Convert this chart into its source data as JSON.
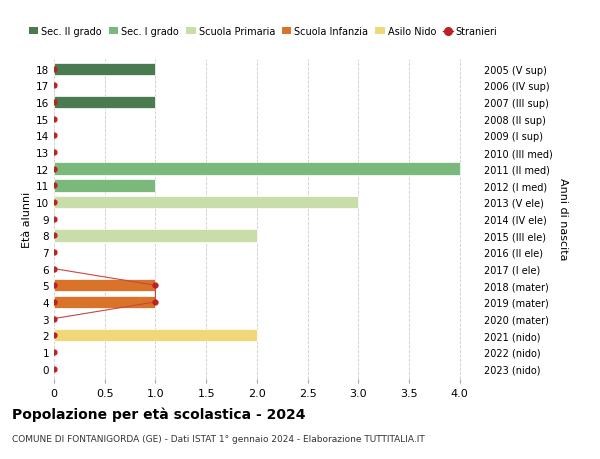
{
  "title": "Popolazione per età scolastica - 2024",
  "subtitle": "COMUNE DI FONTANIGORDA (GE) - Dati ISTAT 1° gennaio 2024 - Elaborazione TUTTITALIA.IT",
  "xlabel_left": "Età alunni",
  "xlabel_right": "Anni di nascita",
  "y_ages": [
    18,
    17,
    16,
    15,
    14,
    13,
    12,
    11,
    10,
    9,
    8,
    7,
    6,
    5,
    4,
    3,
    2,
    1,
    0
  ],
  "right_labels": [
    "2005 (V sup)",
    "2006 (IV sup)",
    "2007 (III sup)",
    "2008 (II sup)",
    "2009 (I sup)",
    "2010 (III med)",
    "2011 (II med)",
    "2012 (I med)",
    "2013 (V ele)",
    "2014 (IV ele)",
    "2015 (III ele)",
    "2016 (II ele)",
    "2017 (I ele)",
    "2018 (mater)",
    "2019 (mater)",
    "2020 (mater)",
    "2021 (nido)",
    "2022 (nido)",
    "2023 (nido)"
  ],
  "bars": [
    {
      "age": 18,
      "value": 1,
      "color": "#4a7a50"
    },
    {
      "age": 17,
      "value": 0,
      "color": "#4a7a50"
    },
    {
      "age": 16,
      "value": 1,
      "color": "#4a7a50"
    },
    {
      "age": 15,
      "value": 0,
      "color": "#4a7a50"
    },
    {
      "age": 14,
      "value": 0,
      "color": "#4a7a50"
    },
    {
      "age": 13,
      "value": 0,
      "color": "#7bb87b"
    },
    {
      "age": 12,
      "value": 4,
      "color": "#7bb87b"
    },
    {
      "age": 11,
      "value": 1,
      "color": "#7bb87b"
    },
    {
      "age": 10,
      "value": 3,
      "color": "#c8dda8"
    },
    {
      "age": 9,
      "value": 0,
      "color": "#c8dda8"
    },
    {
      "age": 8,
      "value": 2,
      "color": "#c8dda8"
    },
    {
      "age": 7,
      "value": 0,
      "color": "#c8dda8"
    },
    {
      "age": 6,
      "value": 0,
      "color": "#c8dda8"
    },
    {
      "age": 5,
      "value": 1,
      "color": "#d9732a"
    },
    {
      "age": 4,
      "value": 1,
      "color": "#d9732a"
    },
    {
      "age": 3,
      "value": 0,
      "color": "#d9732a"
    },
    {
      "age": 2,
      "value": 2,
      "color": "#f0d878"
    },
    {
      "age": 1,
      "value": 0,
      "color": "#f0d878"
    },
    {
      "age": 0,
      "value": 0,
      "color": "#f0d878"
    }
  ],
  "stranieri_dots": [
    18,
    17,
    16,
    15,
    14,
    13,
    12,
    11,
    10,
    9,
    8,
    7,
    6,
    5,
    4,
    3,
    2,
    1,
    0
  ],
  "stranieri_values": [
    0,
    0,
    0,
    0,
    0,
    0,
    0,
    0,
    0,
    0,
    0,
    0,
    0,
    1,
    1,
    0,
    0,
    0,
    0
  ],
  "stranieri_color": "#bb2222",
  "stranieri_line_color": "#cc4444",
  "legend_items": [
    {
      "label": "Sec. II grado",
      "color": "#4a7a50",
      "type": "patch"
    },
    {
      "label": "Sec. I grado",
      "color": "#7bb87b",
      "type": "patch"
    },
    {
      "label": "Scuola Primaria",
      "color": "#c8dda8",
      "type": "patch"
    },
    {
      "label": "Scuola Infanzia",
      "color": "#d9732a",
      "type": "patch"
    },
    {
      "label": "Asilo Nido",
      "color": "#f0d878",
      "type": "patch"
    },
    {
      "label": "Stranieri",
      "color": "#bb2222",
      "type": "line"
    }
  ],
  "xlim": [
    0,
    4.2
  ],
  "xticks": [
    0,
    0.5,
    1.0,
    1.5,
    2.0,
    2.5,
    3.0,
    3.5,
    4.0
  ],
  "xticklabels": [
    "0",
    "0.5",
    "1.0",
    "1.5",
    "2.0",
    "2.5",
    "3.0",
    "3.5",
    "4.0"
  ],
  "grid_color": "#cccccc",
  "bg_color": "#ffffff",
  "bar_height": 0.75
}
